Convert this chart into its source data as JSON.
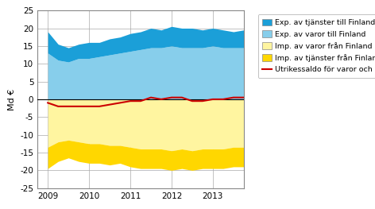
{
  "title": "",
  "ylabel": "Md €",
  "xlim": [
    2008.75,
    2013.75
  ],
  "ylim": [
    -25,
    25
  ],
  "yticks": [
    -25,
    -20,
    -15,
    -10,
    -5,
    0,
    5,
    10,
    15,
    20,
    25
  ],
  "xtick_years": [
    2009,
    2010,
    2011,
    2012,
    2013
  ],
  "color_exp_services": "#1B9FD8",
  "color_exp_goods": "#87CEEB",
  "color_imp_goods": "#FFF5A0",
  "color_imp_services": "#FFD700",
  "color_balance": "#CC0000",
  "quarters": [
    2009.0,
    2009.25,
    2009.5,
    2009.75,
    2010.0,
    2010.25,
    2010.5,
    2010.75,
    2011.0,
    2011.25,
    2011.5,
    2011.75,
    2012.0,
    2012.25,
    2012.5,
    2012.75,
    2013.0,
    2013.25,
    2013.5,
    2013.75
  ],
  "exp_goods": [
    13.0,
    11.0,
    10.5,
    11.5,
    11.5,
    12.0,
    12.5,
    13.0,
    13.5,
    14.0,
    14.5,
    14.5,
    15.0,
    14.5,
    14.5,
    14.5,
    15.0,
    14.5,
    14.5,
    14.5
  ],
  "exp_services": [
    6.0,
    4.5,
    4.0,
    4.0,
    4.5,
    4.0,
    4.5,
    4.5,
    5.0,
    5.0,
    5.5,
    5.0,
    5.5,
    5.5,
    5.5,
    5.0,
    5.0,
    5.0,
    4.5,
    5.0
  ],
  "imp_goods": [
    -13.5,
    -12.0,
    -11.5,
    -12.0,
    -12.5,
    -12.5,
    -13.0,
    -13.0,
    -13.5,
    -14.0,
    -14.0,
    -14.0,
    -14.5,
    -14.0,
    -14.5,
    -14.0,
    -14.0,
    -14.0,
    -13.5,
    -13.5
  ],
  "imp_services": [
    -6.0,
    -5.5,
    -5.0,
    -5.5,
    -5.5,
    -5.5,
    -5.5,
    -5.0,
    -5.5,
    -5.5,
    -5.5,
    -5.5,
    -5.5,
    -5.5,
    -5.5,
    -5.5,
    -5.5,
    -5.5,
    -5.5,
    -5.5
  ],
  "balance": [
    -1.0,
    -2.0,
    -2.0,
    -2.0,
    -2.0,
    -2.0,
    -1.5,
    -1.0,
    -0.5,
    -0.5,
    0.5,
    0.0,
    0.5,
    0.5,
    -0.5,
    -0.5,
    0.0,
    0.0,
    0.5,
    0.5
  ],
  "legend_labels": [
    "Exp. av tjänster till Finland",
    "Exp. av varor till Finland",
    "Imp. av varor från Finland",
    "Imp. av tjänster från Finland",
    "Utrikessaldo för varor och tj."
  ],
  "legend_colors": [
    "#1B9FD8",
    "#87CEEB",
    "#FFF5A0",
    "#FFD700"
  ],
  "bg_color": "#FFFFFF"
}
